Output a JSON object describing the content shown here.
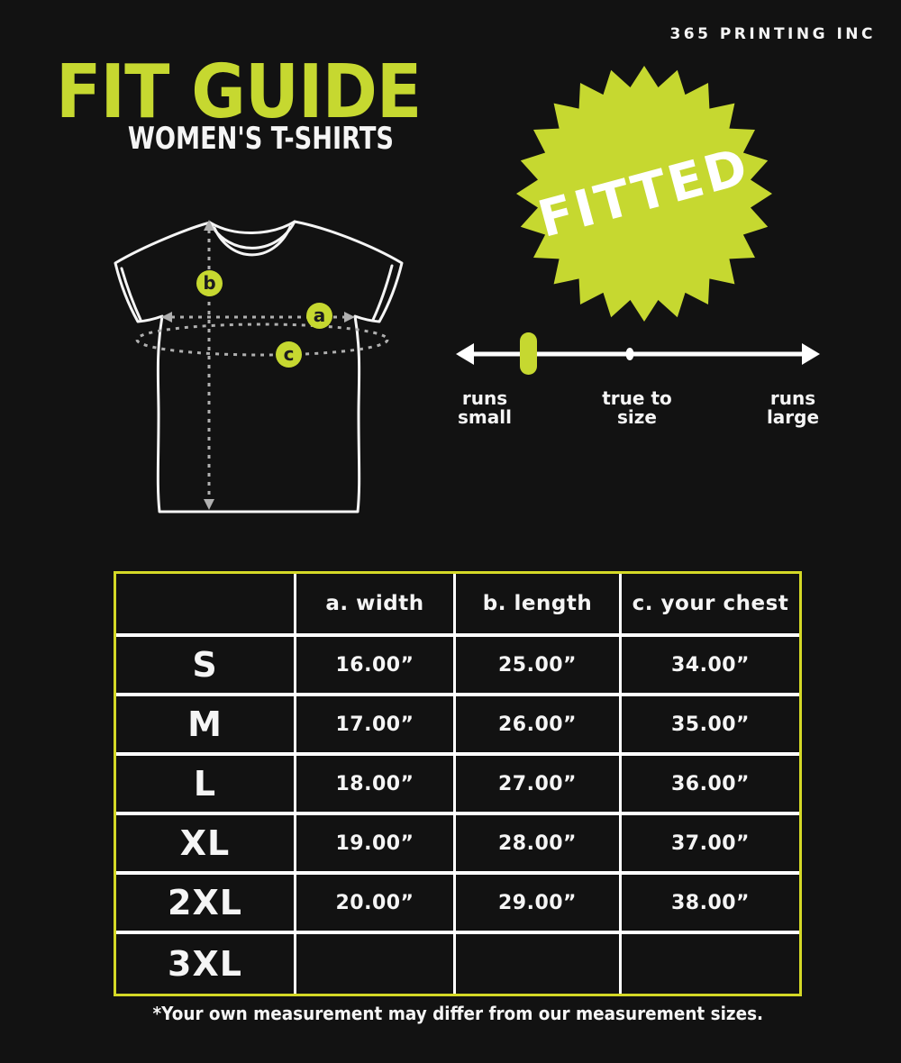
{
  "brand": "365 PRINTING INC",
  "title": "FIT GUIDE",
  "subtitle": "WOMEN'S T-SHIRTS",
  "badge": {
    "label": "FITTED"
  },
  "diagram": {
    "markers": [
      {
        "letter": "b",
        "meaning": "length"
      },
      {
        "letter": "a",
        "meaning": "width"
      },
      {
        "letter": "c",
        "meaning": "your chest"
      }
    ]
  },
  "fit_scale": {
    "left_label": {
      "line1": "runs",
      "line2": "small"
    },
    "center_label": {
      "line1": "true to",
      "line2": "size"
    },
    "right_label": {
      "line1": "runs",
      "line2": "large"
    },
    "marker_position": "runs small"
  },
  "size_table": {
    "headers": [
      "a. width",
      "b. length",
      "c. your chest"
    ],
    "rows": [
      {
        "size": "S",
        "width": "16.00”",
        "length": "25.00”",
        "chest": "34.00”"
      },
      {
        "size": "M",
        "width": "17.00”",
        "length": "26.00”",
        "chest": "35.00”"
      },
      {
        "size": "L",
        "width": "18.00”",
        "length": "27.00”",
        "chest": "36.00”"
      },
      {
        "size": "XL",
        "width": "19.00”",
        "length": "28.00”",
        "chest": "37.00”"
      },
      {
        "size": "2XL",
        "width": "20.00”",
        "length": "29.00”",
        "chest": "38.00”"
      },
      {
        "size": "3XL",
        "width": "",
        "length": "",
        "chest": ""
      }
    ]
  },
  "footnote": "*Your own measurement may differ from our measurement sizes.",
  "colors": {
    "background": "#121212",
    "accent_green": "#c6d830",
    "table_border": "#d4d826",
    "text_white": "#f5f5f5",
    "dash_gray": "#b0b0b0",
    "marker_letter_dark": "#1c1c1e"
  }
}
